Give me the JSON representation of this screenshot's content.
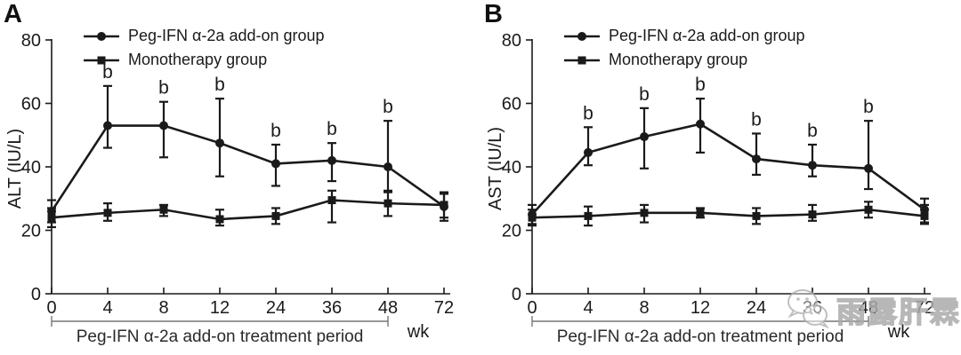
{
  "watermark": {
    "text": "雨露肝霖",
    "logo": "wechat-logo",
    "color": "#ababab"
  },
  "colors": {
    "line": "#1a1a1a",
    "bracket": "#777777",
    "background": "#ffffff"
  },
  "chart_data": [
    {
      "type": "line",
      "panel_label": "A",
      "ylabel": "ALT (IU/L)",
      "xunit": "wk",
      "categories": [
        "0",
        "4",
        "8",
        "12",
        "24",
        "36",
        "48",
        "72"
      ],
      "yticks": [
        0,
        20,
        40,
        60,
        80
      ],
      "ylim": [
        0,
        80
      ],
      "grid": false,
      "legend_position": "top-left-inside",
      "treatment_label": "Peg-IFN α-2a add-on treatment period",
      "treatment_span_category_indexes": [
        0,
        6
      ],
      "sig_label": "b",
      "sig_category_indexes": [
        1,
        2,
        3,
        4,
        5,
        6
      ],
      "series": [
        {
          "name": "Peg-IFN α-2a add-on group",
          "marker": "circle",
          "values": [
            26,
            53,
            53,
            47.5,
            41,
            42,
            40,
            27.5
          ],
          "err_lo": [
            22.5,
            46,
            43,
            37,
            34,
            35.5,
            32,
            23
          ],
          "err_hi": [
            29.5,
            65.5,
            60.5,
            61.5,
            47,
            47.5,
            54.5,
            32
          ]
        },
        {
          "name": "Monotherapy group",
          "marker": "square",
          "values": [
            24,
            25.5,
            26.5,
            23.5,
            24.5,
            29.5,
            28.5,
            28
          ],
          "err_lo": [
            21,
            23,
            24.5,
            21.5,
            22,
            22.5,
            24.5,
            24
          ],
          "err_hi": [
            27,
            28.5,
            28,
            26.5,
            27,
            32.5,
            32.5,
            31.5
          ]
        }
      ]
    },
    {
      "type": "line",
      "panel_label": "B",
      "ylabel": "AST (IU/L)",
      "xunit": "wk",
      "categories": [
        "0",
        "4",
        "8",
        "12",
        "24",
        "36",
        "48",
        "72"
      ],
      "yticks": [
        0,
        20,
        40,
        60,
        80
      ],
      "ylim": [
        0,
        80
      ],
      "grid": false,
      "legend_position": "top-left-inside",
      "treatment_label": "Peg-IFN α-2a add-on treatment period",
      "treatment_span_category_indexes": [
        0,
        6
      ],
      "sig_label": "b",
      "sig_category_indexes": [
        1,
        2,
        3,
        4,
        5,
        6
      ],
      "series": [
        {
          "name": "Peg-IFN α-2a add-on group",
          "marker": "circle",
          "values": [
            25,
            44.5,
            49.5,
            53.5,
            42.5,
            40.5,
            39.5,
            26.5
          ],
          "err_lo": [
            22,
            40.5,
            39.5,
            44.5,
            37.5,
            37,
            33,
            22.5
          ],
          "err_hi": [
            28,
            52.5,
            58.5,
            61.5,
            50.5,
            47,
            54.5,
            30
          ]
        },
        {
          "name": "Monotherapy group",
          "marker": "square",
          "values": [
            24,
            24.5,
            25.5,
            25.5,
            24.5,
            25,
            26.5,
            24.5
          ],
          "err_lo": [
            21.5,
            21.5,
            22.5,
            24,
            22,
            23,
            24,
            22
          ],
          "err_hi": [
            26.5,
            27.5,
            28,
            27,
            27,
            28,
            29,
            28
          ]
        }
      ]
    }
  ]
}
